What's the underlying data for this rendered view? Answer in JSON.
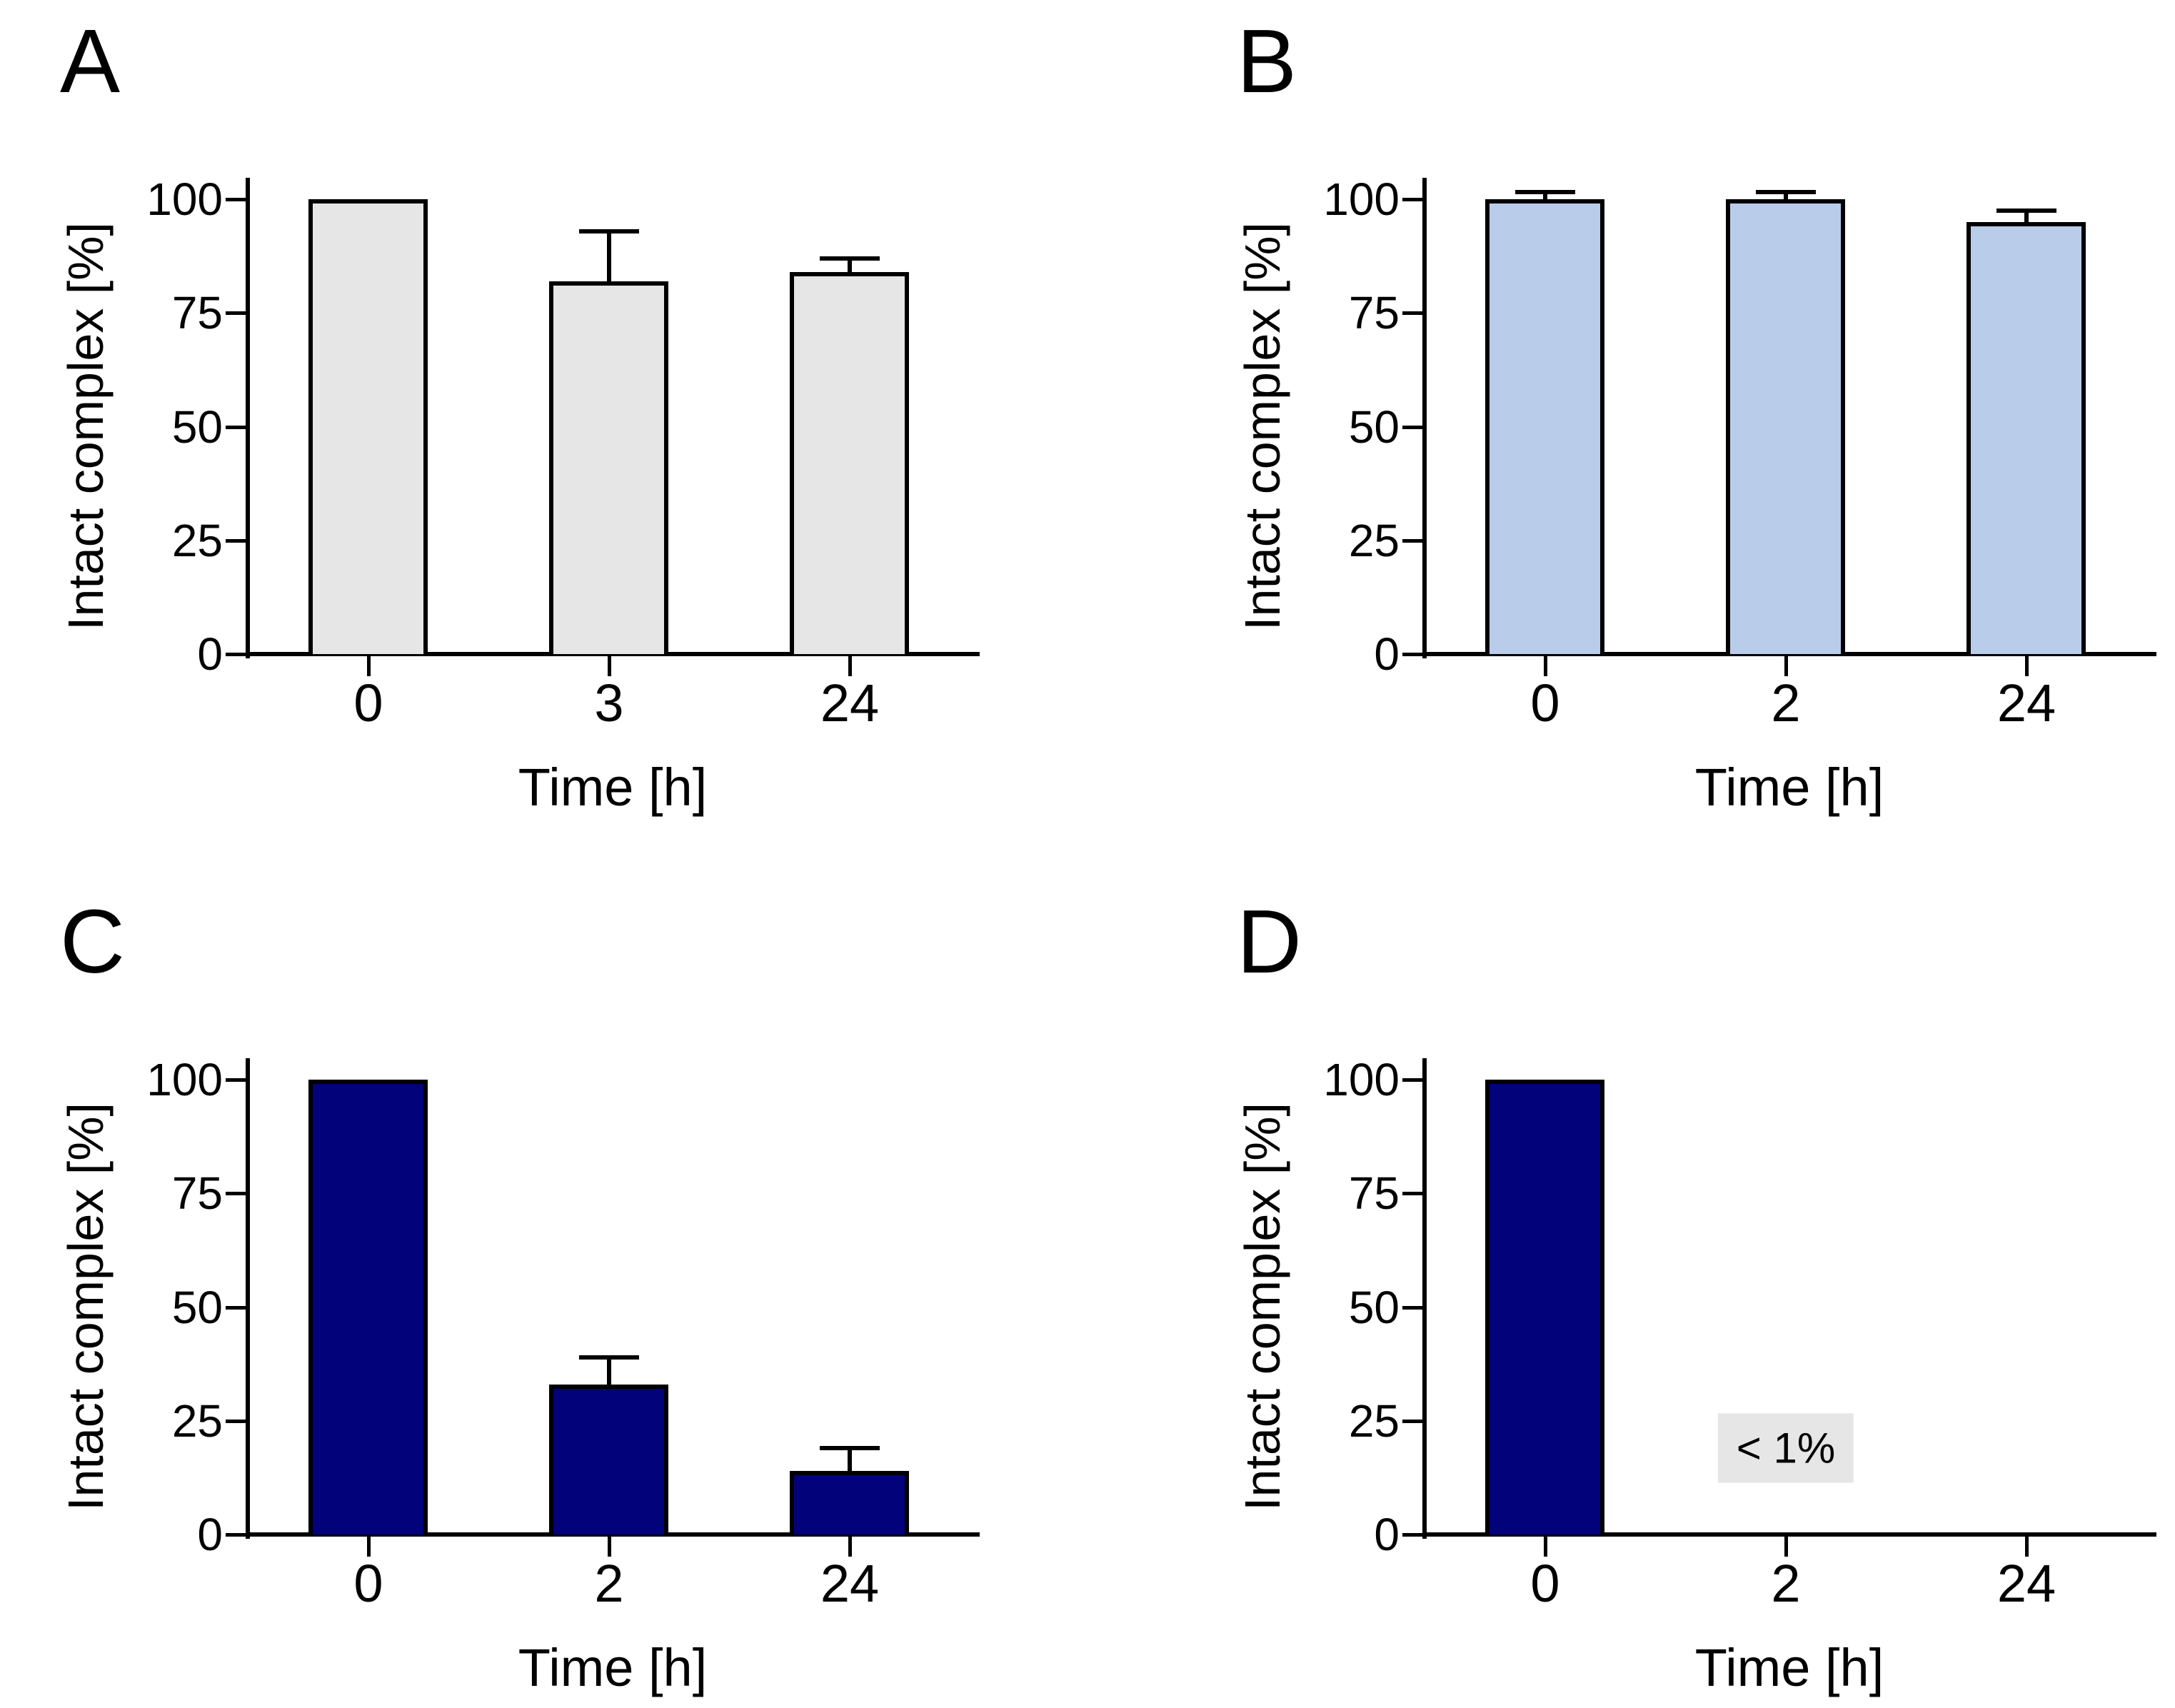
{
  "figure": {
    "background": "#ffffff",
    "axis_color": "#000000",
    "text_color": "#000000"
  },
  "chart_data": [
    {
      "type": "bar",
      "panel_label": "A",
      "ylabel": "Intact complex [%]",
      "xlabel": "Time [h]",
      "ylim": [
        0,
        100
      ],
      "yticks": [
        0,
        25,
        50,
        75,
        100
      ],
      "categories": [
        "0",
        "3",
        "24"
      ],
      "values": [
        100,
        82,
        84
      ],
      "errors": [
        0,
        11,
        3
      ],
      "bar_fill": "#e6e6e6",
      "bar_border": "#000000",
      "annotation": null
    },
    {
      "type": "bar",
      "panel_label": "B",
      "ylabel": "Intact complex [%]",
      "xlabel": "Time [h]",
      "ylim": [
        0,
        100
      ],
      "yticks": [
        0,
        25,
        50,
        75,
        100
      ],
      "categories": [
        "0",
        "2",
        "24"
      ],
      "values": [
        100,
        100,
        95
      ],
      "errors": [
        1.5,
        1.5,
        2.5
      ],
      "bar_fill": "#b9cce9",
      "bar_border": "#000000",
      "annotation": null
    },
    {
      "type": "bar",
      "panel_label": "C",
      "ylabel": "Intact complex [%]",
      "xlabel": "Time [h]",
      "ylim": [
        0,
        100
      ],
      "yticks": [
        0,
        25,
        50,
        75,
        100
      ],
      "categories": [
        "0",
        "2",
        "24"
      ],
      "values": [
        100,
        33,
        14
      ],
      "errors": [
        0,
        6,
        5
      ],
      "bar_fill": "#02027a",
      "bar_border": "#000000",
      "annotation": null
    },
    {
      "type": "bar",
      "panel_label": "D",
      "ylabel": "Intact complex [%]",
      "xlabel": "Time [h]",
      "ylim": [
        0,
        100
      ],
      "yticks": [
        0,
        25,
        50,
        75,
        100
      ],
      "categories": [
        "0",
        "2",
        "24"
      ],
      "values": [
        100,
        null,
        null
      ],
      "errors": [
        0,
        0,
        0
      ],
      "bar_fill": "#02027a",
      "bar_border": "#000000",
      "annotation": {
        "text": "< 1%",
        "slot": 1,
        "y_value": 19,
        "bg": "#e6e6e6"
      }
    }
  ]
}
